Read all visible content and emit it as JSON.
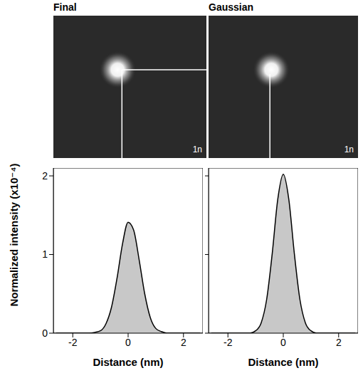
{
  "chart_data": [
    {
      "type": "area",
      "title": "Final",
      "image_label": "1n",
      "xlabel": "Distance (nm)",
      "ylabel": "Normalized intensity (x10⁻⁴)",
      "x": [
        -2.6,
        -2.4,
        -2.2,
        -2.0,
        -1.8,
        -1.6,
        -1.4,
        -1.2,
        -1.0,
        -0.8,
        -0.6,
        -0.4,
        -0.2,
        0,
        0.2,
        0.4,
        0.6,
        0.8,
        1.0,
        1.2,
        1.4,
        1.6,
        1.8,
        2.0,
        2.2,
        2.4,
        2.6
      ],
      "values": [
        0,
        0,
        0,
        0,
        0,
        0,
        0,
        0.01,
        0.03,
        0.12,
        0.33,
        0.7,
        1.14,
        1.41,
        1.31,
        0.93,
        0.5,
        0.2,
        0.06,
        0.02,
        0,
        0,
        0,
        0,
        0,
        0,
        0
      ],
      "color": "#c8c8c8",
      "xlim": [
        -2.7,
        2.7
      ],
      "xticks": [
        -2,
        0,
        2
      ],
      "ylim": [
        0,
        2.1
      ],
      "yticks": [
        0,
        1,
        2
      ],
      "grid": false
    },
    {
      "type": "area",
      "title": "Gaussian",
      "image_label": "1n",
      "xlabel": "Distance (nm)",
      "x": [
        -2.6,
        -2.4,
        -2.2,
        -2.0,
        -1.8,
        -1.6,
        -1.4,
        -1.2,
        -1.0,
        -0.8,
        -0.6,
        -0.4,
        -0.2,
        0,
        0.2,
        0.4,
        0.6,
        0.8,
        1.0,
        1.2,
        1.4,
        1.6,
        1.8,
        2.0,
        2.2,
        2.4,
        2.6
      ],
      "values": [
        0,
        0,
        0,
        0,
        0,
        0,
        0,
        0,
        0.03,
        0.13,
        0.43,
        1.01,
        1.7,
        2.02,
        1.7,
        1.01,
        0.43,
        0.13,
        0.03,
        0,
        0,
        0,
        0,
        0,
        0,
        0,
        0
      ],
      "color": "#c8c8c8",
      "xlim": [
        -2.7,
        2.7
      ],
      "xticks": [
        -2,
        0,
        2
      ],
      "ylim": [
        0,
        2.1
      ],
      "yticks": [
        0,
        1,
        2
      ],
      "grid": false,
      "tick_labels": "x"
    }
  ]
}
